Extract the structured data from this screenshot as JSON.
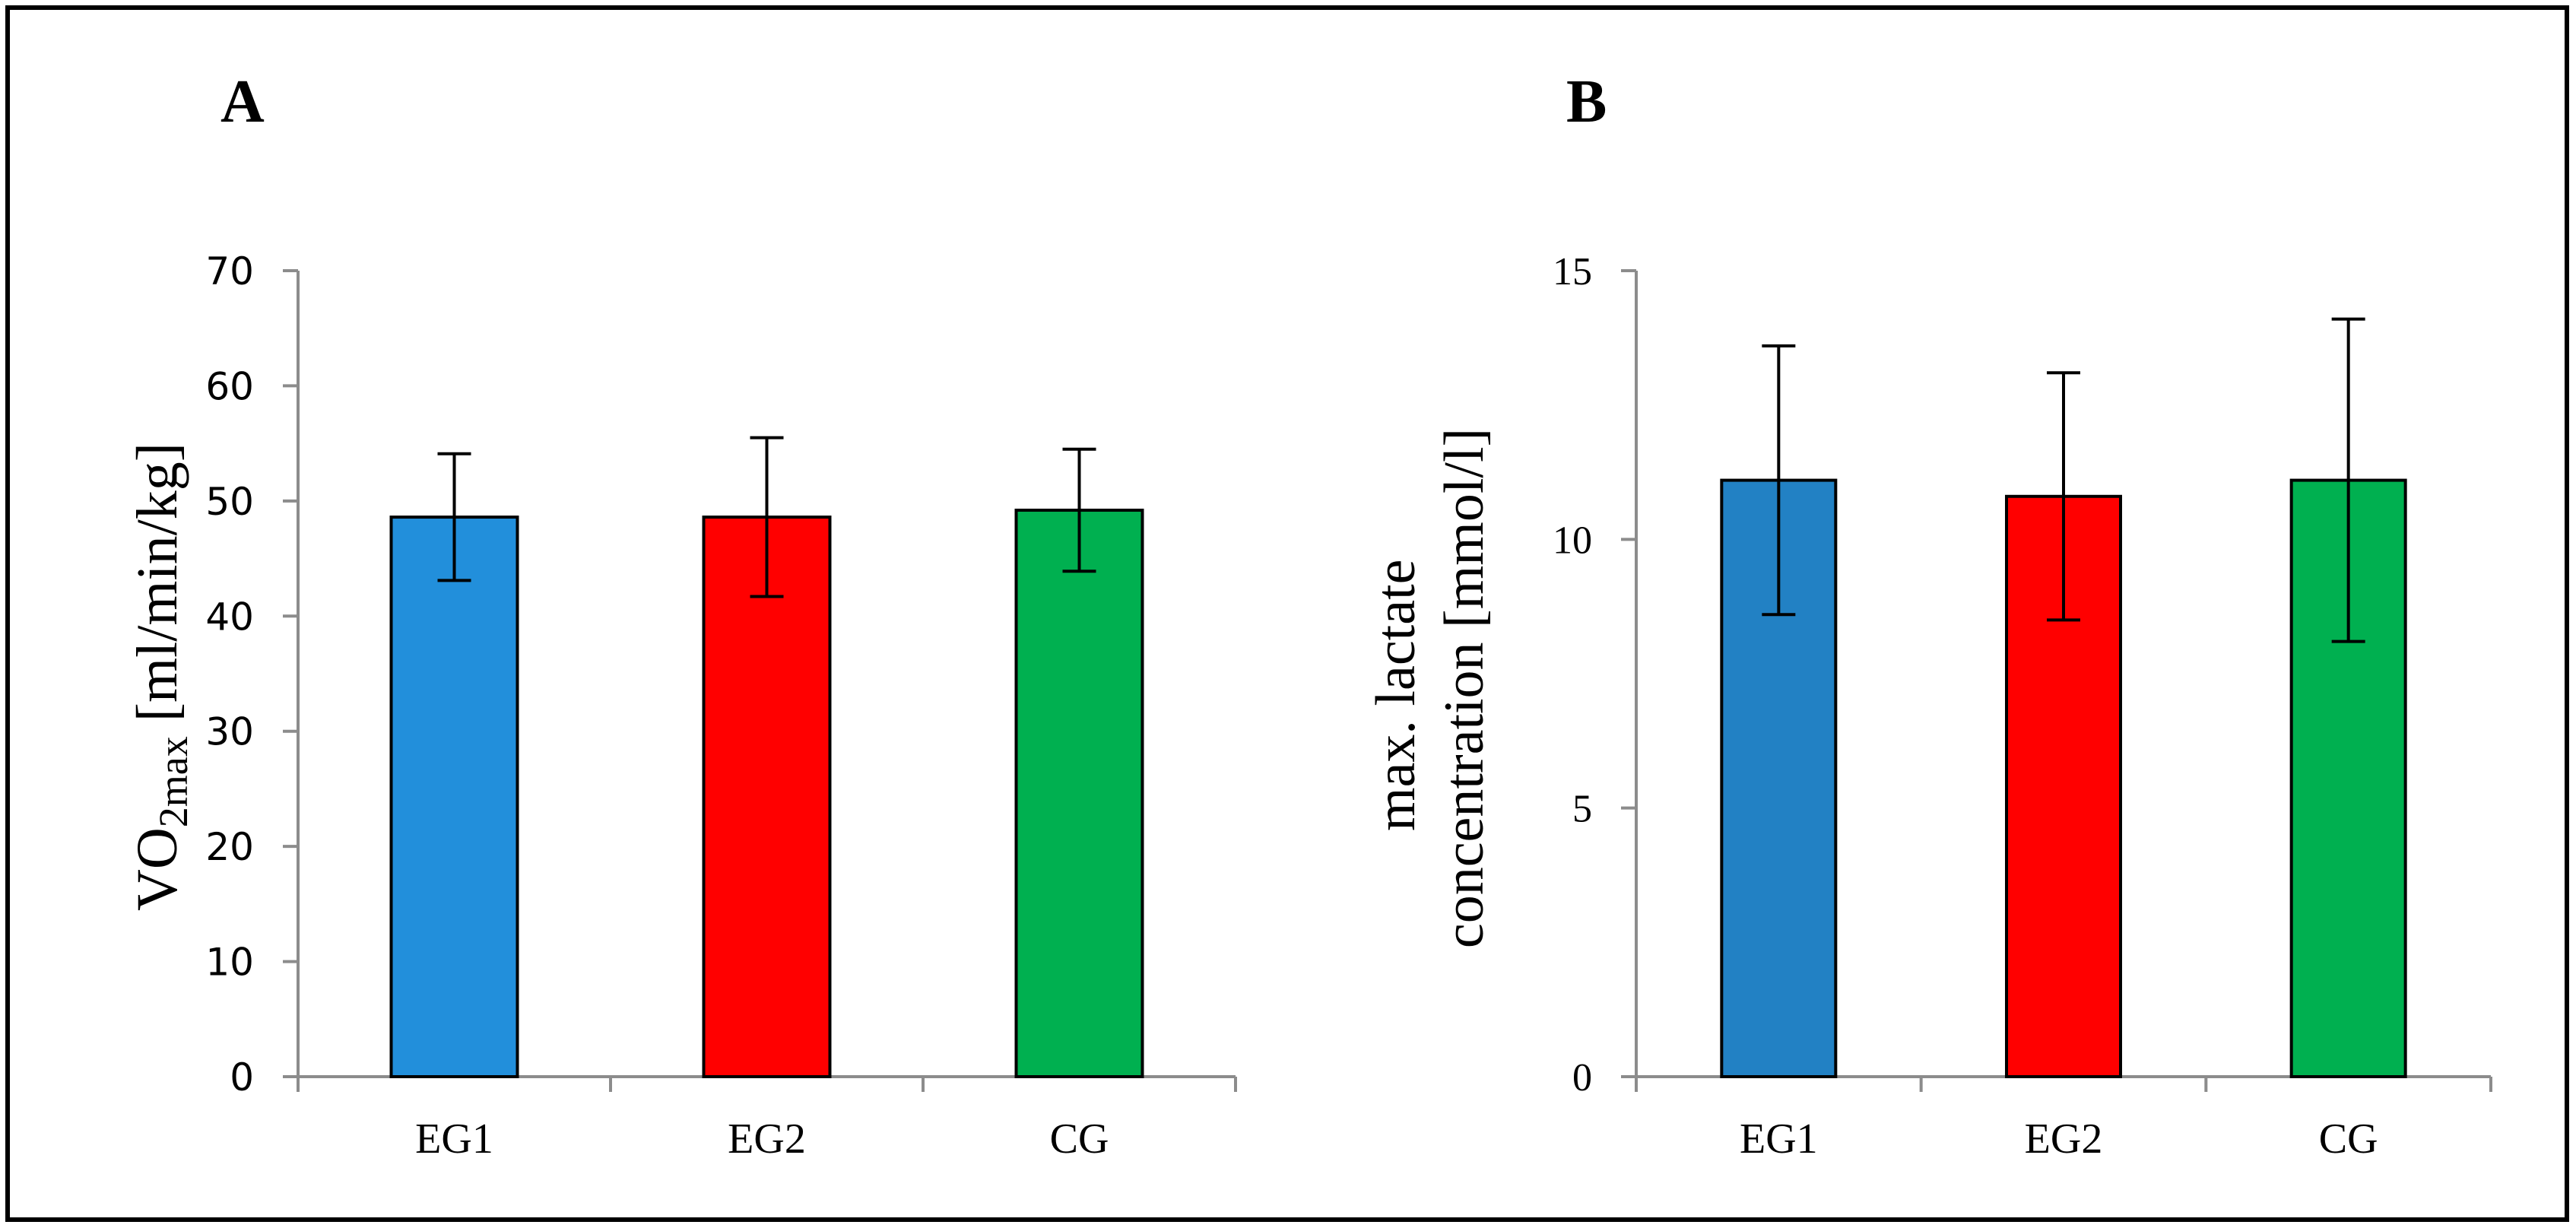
{
  "chart_data": [
    {
      "type": "bar",
      "panel": "A",
      "title": "",
      "categories": [
        "EG1",
        "EG2",
        "CG"
      ],
      "values": [
        48.6,
        48.6,
        49.2
      ],
      "errors": [
        5.5,
        6.9,
        5.3
      ],
      "colors": [
        "#228fdb",
        "#ff0000",
        "#00b050"
      ],
      "ylabel_main": "VO",
      "ylabel_sub": "2max",
      "ylabel_rest": " [ml/min/kg]",
      "xlabel": "",
      "ylim": [
        0,
        70
      ],
      "yticks": [
        "0",
        "10",
        "20",
        "30",
        "40",
        "50",
        "60",
        "70"
      ],
      "yticks_values": [
        0,
        10,
        20,
        30,
        40,
        50,
        60,
        70
      ]
    },
    {
      "type": "bar",
      "panel": "B",
      "title": "",
      "categories": [
        "EG1",
        "EG2",
        "CG"
      ],
      "values": [
        11.1,
        10.8,
        11.1
      ],
      "errors": [
        2.5,
        2.3,
        3.0
      ],
      "colors": [
        "#2281c4",
        "#ff0000",
        "#00b050"
      ],
      "ylabel_line1": "max. lactate",
      "ylabel_line2": "concentration [mmol/l]",
      "xlabel": "",
      "ylim": [
        0,
        15
      ],
      "yticks": [
        "0",
        "5",
        "10",
        "15"
      ],
      "yticks_values": [
        0,
        5,
        10,
        15
      ]
    }
  ]
}
